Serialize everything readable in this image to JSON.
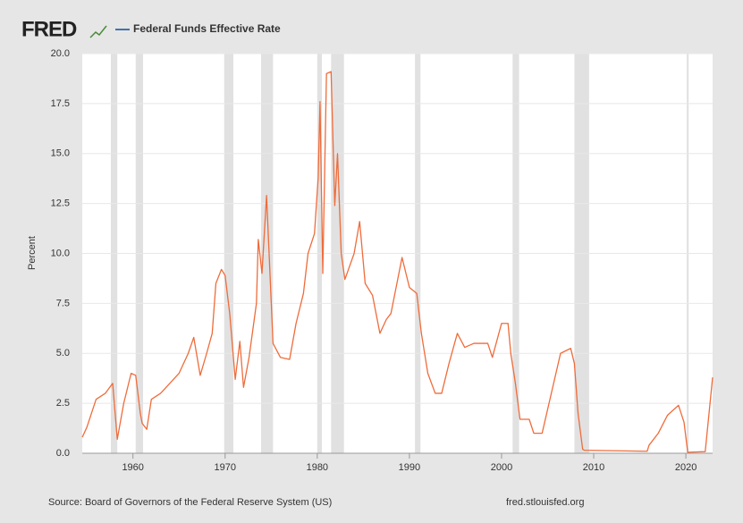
{
  "chart_data": {
    "type": "line",
    "logo": "FRED",
    "ylabel": "Percent",
    "source": "Source: Board of Governors of the Federal Reserve System (US)",
    "site": "fred.stlouisfed.org",
    "legend_line_color": "#4572a7",
    "recession_color": "#e1e1e1",
    "grid": true,
    "xlim": [
      1954.5,
      2022.9
    ],
    "xticks": [
      1960,
      1970,
      1980,
      1990,
      2000,
      2010,
      2020
    ],
    "ylim": [
      0,
      20
    ],
    "yticks": [
      {
        "value": 0,
        "label": "0.0"
      },
      {
        "value": 2.5,
        "label": "2.5"
      },
      {
        "value": 5,
        "label": "5.0"
      },
      {
        "value": 7.5,
        "label": "7.5"
      },
      {
        "value": 10,
        "label": "10.0"
      },
      {
        "value": 12.5,
        "label": "12.5"
      },
      {
        "value": 15,
        "label": "15.0"
      },
      {
        "value": 17.5,
        "label": "17.5"
      },
      {
        "value": 20,
        "label": "20.0"
      }
    ],
    "recessions": [
      [
        1957.6,
        1958.3
      ],
      [
        1960.3,
        1961.1
      ],
      [
        1969.9,
        1970.9
      ],
      [
        1973.9,
        1975.2
      ],
      [
        1980.0,
        1980.5
      ],
      [
        1981.5,
        1982.9
      ],
      [
        1990.6,
        1991.2
      ],
      [
        2001.2,
        2001.9
      ],
      [
        2007.9,
        2009.5
      ],
      [
        2020.1,
        2020.3
      ]
    ],
    "x": [
      1954.5,
      1955,
      1956,
      1957,
      1957.8,
      1958.3,
      1959,
      1959.8,
      1960.3,
      1960.8,
      1961,
      1961.5,
      1962,
      1963,
      1964,
      1965,
      1966,
      1966.6,
      1967.3,
      1968,
      1968.6,
      1969,
      1969.6,
      1970,
      1970.5,
      1971.1,
      1971.6,
      1972,
      1972.6,
      1973.4,
      1973.6,
      1974,
      1974.5,
      1975.2,
      1976,
      1977,
      1977.7,
      1978.5,
      1979,
      1979.7,
      1980.1,
      1980.3,
      1980.6,
      1981,
      1981.5,
      1981.9,
      1982.2,
      1982.6,
      1983,
      1984,
      1984.6,
      1985.2,
      1986,
      1986.8,
      1987.5,
      1988,
      1989.2,
      1990,
      1990.8,
      1991.3,
      1992,
      1992.8,
      1993.5,
      1994.3,
      1995.2,
      1996,
      1997,
      1998.5,
      1999,
      2000,
      2000.7,
      2001,
      2001.5,
      2002,
      2003,
      2003.5,
      2004.4,
      2006.4,
      2007.5,
      2007.9,
      2008.3,
      2008.8,
      2009,
      2015.8,
      2016,
      2017,
      2018,
      2019.2,
      2019.8,
      2020.2,
      2022.1,
      2022.9
    ],
    "series": [
      {
        "name": "Federal Funds Effective Rate",
        "color": "#ef6c3b",
        "values": [
          0.8,
          1.3,
          2.7,
          3.0,
          3.5,
          0.7,
          2.5,
          4.0,
          3.9,
          2.0,
          1.5,
          1.2,
          2.7,
          3.0,
          3.5,
          4.0,
          5.0,
          5.8,
          3.9,
          5.0,
          6.0,
          8.5,
          9.2,
          8.9,
          7.0,
          3.7,
          5.6,
          3.3,
          4.8,
          7.5,
          10.7,
          9.0,
          12.9,
          5.5,
          4.8,
          4.7,
          6.5,
          8.0,
          10.0,
          11.0,
          13.8,
          17.6,
          9.0,
          19.0,
          19.1,
          12.4,
          15.0,
          10.0,
          8.7,
          10.0,
          11.6,
          8.5,
          7.9,
          6.0,
          6.7,
          7.0,
          9.8,
          8.3,
          8.0,
          6.0,
          4.0,
          3.0,
          3.0,
          4.5,
          6.0,
          5.3,
          5.5,
          5.5,
          4.8,
          6.5,
          6.5,
          5.0,
          3.5,
          1.7,
          1.7,
          1.0,
          1.0,
          5.0,
          5.25,
          4.5,
          2.0,
          0.2,
          0.15,
          0.1,
          0.4,
          1.0,
          1.9,
          2.4,
          1.55,
          0.05,
          0.08,
          3.8
        ]
      }
    ]
  }
}
